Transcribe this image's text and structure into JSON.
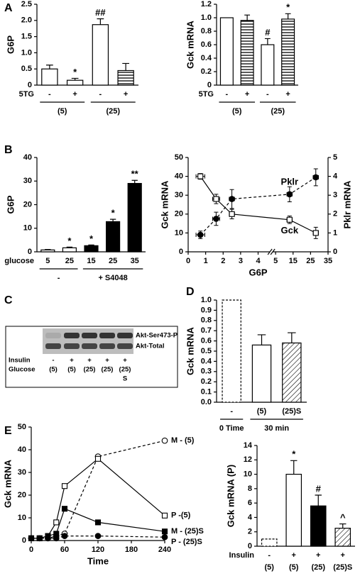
{
  "panel_labels": [
    "A",
    "B",
    "C",
    "D",
    "E"
  ],
  "chart_data": [
    {
      "type": "bar",
      "ylabel": "G6P",
      "ylim": [
        0,
        2.5
      ],
      "yticks": [
        0,
        0.5,
        {
          "value": 1,
          "label": "1.0"
        },
        1.5,
        {
          "value": 2,
          "label": "2.0"
        },
        2.5
      ],
      "row_label": "5TG",
      "categories": [
        "-",
        "+",
        "-",
        "+"
      ],
      "values": [
        0.5,
        0.15,
        1.87,
        0.45
      ],
      "errors": [
        0.12,
        0.06,
        0.18,
        0.22
      ],
      "annotations": [
        null,
        "*",
        "##",
        null
      ],
      "bar_styles": [
        "open",
        "open",
        "open",
        "horizontal"
      ],
      "groups": [
        {
          "label": "(5)",
          "count": 2
        },
        {
          "label": "(25)",
          "count": 2
        }
      ],
      "group_lines": true
    },
    {
      "type": "bar",
      "ylabel": "Gck mRNA",
      "ylim": [
        0,
        1.2
      ],
      "yticks": [
        0,
        0.2,
        0.4,
        0.6,
        0.8,
        {
          "value": 1,
          "label": "1.0"
        },
        1.2
      ],
      "row_label": "5TG",
      "categories": [
        "-",
        "+",
        "-",
        "+"
      ],
      "values": [
        1.0,
        0.96,
        0.6,
        0.98
      ],
      "errors": [
        null,
        0.08,
        0.09,
        0.08
      ],
      "annotations": [
        null,
        null,
        "#",
        "*"
      ],
      "bar_styles": [
        "open",
        "horizontal",
        "open",
        "horizontal"
      ],
      "groups": [
        {
          "label": "(5)",
          "count": 2
        },
        {
          "label": "(25)",
          "count": 2
        }
      ],
      "group_lines": true
    },
    {
      "type": "bar",
      "ylabel": "G6P",
      "ylim": [
        0,
        40
      ],
      "yticks": [
        0,
        10,
        20,
        30,
        40
      ],
      "row_label": "glucose",
      "categories": [
        5,
        25,
        15,
        25,
        35
      ],
      "values": [
        0.8,
        1.7,
        2.6,
        12.8,
        29
      ],
      "errors": [
        0.2,
        0.3,
        0.3,
        1.0,
        1.3
      ],
      "annotations": [
        null,
        "*",
        "*",
        "*",
        "**"
      ],
      "bar_styles": [
        "open",
        "open",
        "filled",
        "filled",
        "filled"
      ],
      "groups": [
        {
          "label": "-",
          "count": 2
        },
        {
          "label": "+ S4048",
          "count": 3
        }
      ],
      "group_lines": true
    },
    {
      "type": "line",
      "xlabel": "G6P",
      "ylabel": "Gck mRNA",
      "y2label": "Pklr mRNA",
      "xlim": [
        0,
        35
      ],
      "xticks": [
        0,
        1,
        2,
        3,
        4,
        5,
        15,
        25,
        35
      ],
      "xbreak": true,
      "ylim": [
        0,
        50
      ],
      "yticks": [
        0,
        10,
        20,
        30,
        40,
        50
      ],
      "y2lim": [
        0,
        5
      ],
      "y2ticks": [
        0,
        1,
        2,
        3,
        4,
        5
      ],
      "series": [
        {
          "name": "Gck",
          "color": "#000000",
          "marker": "square-open",
          "dashed": false,
          "label_position": "below",
          "x": [
            0.7,
            1.6,
            2.5,
            13,
            28
          ],
          "values": [
            40,
            28,
            20,
            17,
            10
          ],
          "errors": [
            1.5,
            2.5,
            2.5,
            2,
            3
          ],
          "xerrors": [
            0.25,
            0.2,
            0.15,
            1.5,
            1.5
          ]
        },
        {
          "name": "Pklr",
          "color": "#000000",
          "marker": "circle-filled",
          "dashed": true,
          "axis": "y2",
          "label_position": "above",
          "x": [
            0.7,
            1.6,
            2.5,
            13,
            28
          ],
          "values": [
            0.9,
            1.75,
            2.8,
            3.05,
            3.95
          ],
          "errors": [
            0.2,
            0.35,
            0.5,
            0.4,
            0.45
          ],
          "xerrors": [
            0.25,
            0.2,
            0.15,
            1.5,
            1.5
          ]
        }
      ]
    },
    {
      "type": "bar",
      "ylabel": "Gck mRNA",
      "ylim": [
        0,
        1
      ],
      "yticks": [
        {
          "value": 0,
          "label": "0.0"
        },
        0.1,
        0.2,
        0.3,
        0.4,
        0.5,
        0.6,
        0.7,
        0.8,
        0.9,
        {
          "value": 1,
          "label": "1.0"
        }
      ],
      "categories": [
        "-",
        "(5)",
        "(25)S"
      ],
      "values": [
        1.0,
        0.56,
        0.58
      ],
      "errors": [
        null,
        0.1,
        0.1
      ],
      "bar_styles": [
        "dashed",
        "open",
        "diagonal"
      ],
      "groups": [
        {
          "label": "0 Time",
          "count": 1
        },
        {
          "label": "30 min",
          "count": 2
        }
      ],
      "group_lines": true
    },
    {
      "type": "line",
      "xlabel": "Time",
      "ylabel": "Gck mRNA",
      "xlim": [
        0,
        240
      ],
      "xticks": [
        0,
        60,
        120,
        180,
        240
      ],
      "ylim": [
        0,
        50
      ],
      "yticks": [
        0,
        10,
        20,
        30,
        40,
        50
      ],
      "series": [
        {
          "name": "M - (5)",
          "color": "#000000",
          "marker": "circle-open",
          "dashed": true,
          "label_position": "end",
          "x": [
            0,
            15,
            30,
            45,
            60,
            120,
            240
          ],
          "values": [
            1,
            1,
            1,
            2,
            3,
            37,
            44
          ]
        },
        {
          "name": "P -(5)",
          "color": "#000000",
          "marker": "square-open",
          "dashed": false,
          "label_position": "end",
          "x": [
            0,
            15,
            30,
            45,
            60,
            120,
            240
          ],
          "values": [
            1,
            1,
            2,
            8,
            24,
            36,
            11
          ]
        },
        {
          "name": "M - (25)S",
          "color": "#000000",
          "marker": "square-filled",
          "dashed": false,
          "label_position": "end",
          "x": [
            0,
            15,
            30,
            45,
            60,
            120,
            240
          ],
          "values": [
            1,
            1,
            2,
            3,
            14,
            8,
            4
          ]
        },
        {
          "name": "P - (25)S",
          "color": "#000000",
          "marker": "circle-filled",
          "dashed": true,
          "label_position": "end",
          "x": [
            0,
            15,
            30,
            45,
            60,
            120,
            240
          ],
          "values": [
            1,
            1,
            1,
            1,
            2,
            2,
            1.5
          ]
        }
      ]
    },
    {
      "type": "bar",
      "ylabel": "Gck mRNA (P)",
      "ylim": [
        0,
        14
      ],
      "yticks": [
        0,
        2,
        4,
        6,
        8,
        10,
        12,
        14
      ],
      "row_label": "Insulin",
      "categories": [
        "-",
        "+",
        "+",
        "+"
      ],
      "values": [
        1,
        10,
        5.6,
        2.5
      ],
      "errors": [
        null,
        1.9,
        1.5,
        0.6
      ],
      "annotations": [
        null,
        "*",
        "#",
        "^"
      ],
      "bar_styles": [
        "dashed",
        "open",
        "filled",
        "diagonal"
      ],
      "groups": [
        {
          "label": "(5)",
          "count": 1
        },
        {
          "label": "(5)",
          "count": 1
        },
        {
          "label": "(25)",
          "count": 1
        },
        {
          "label": "(25)S",
          "count": 1
        }
      ],
      "group_lines": false
    }
  ],
  "blot": {
    "bands": [
      "Akt-Ser473-P",
      "Akt-Total"
    ],
    "rows": [
      {
        "label": "Insulin",
        "values": [
          "-",
          "+",
          "+",
          "+",
          "+"
        ]
      },
      {
        "label": "Glucose",
        "values": [
          "(5)",
          "(5)",
          "(25)",
          "(25)",
          "(25)"
        ]
      }
    ],
    "note": "S"
  }
}
